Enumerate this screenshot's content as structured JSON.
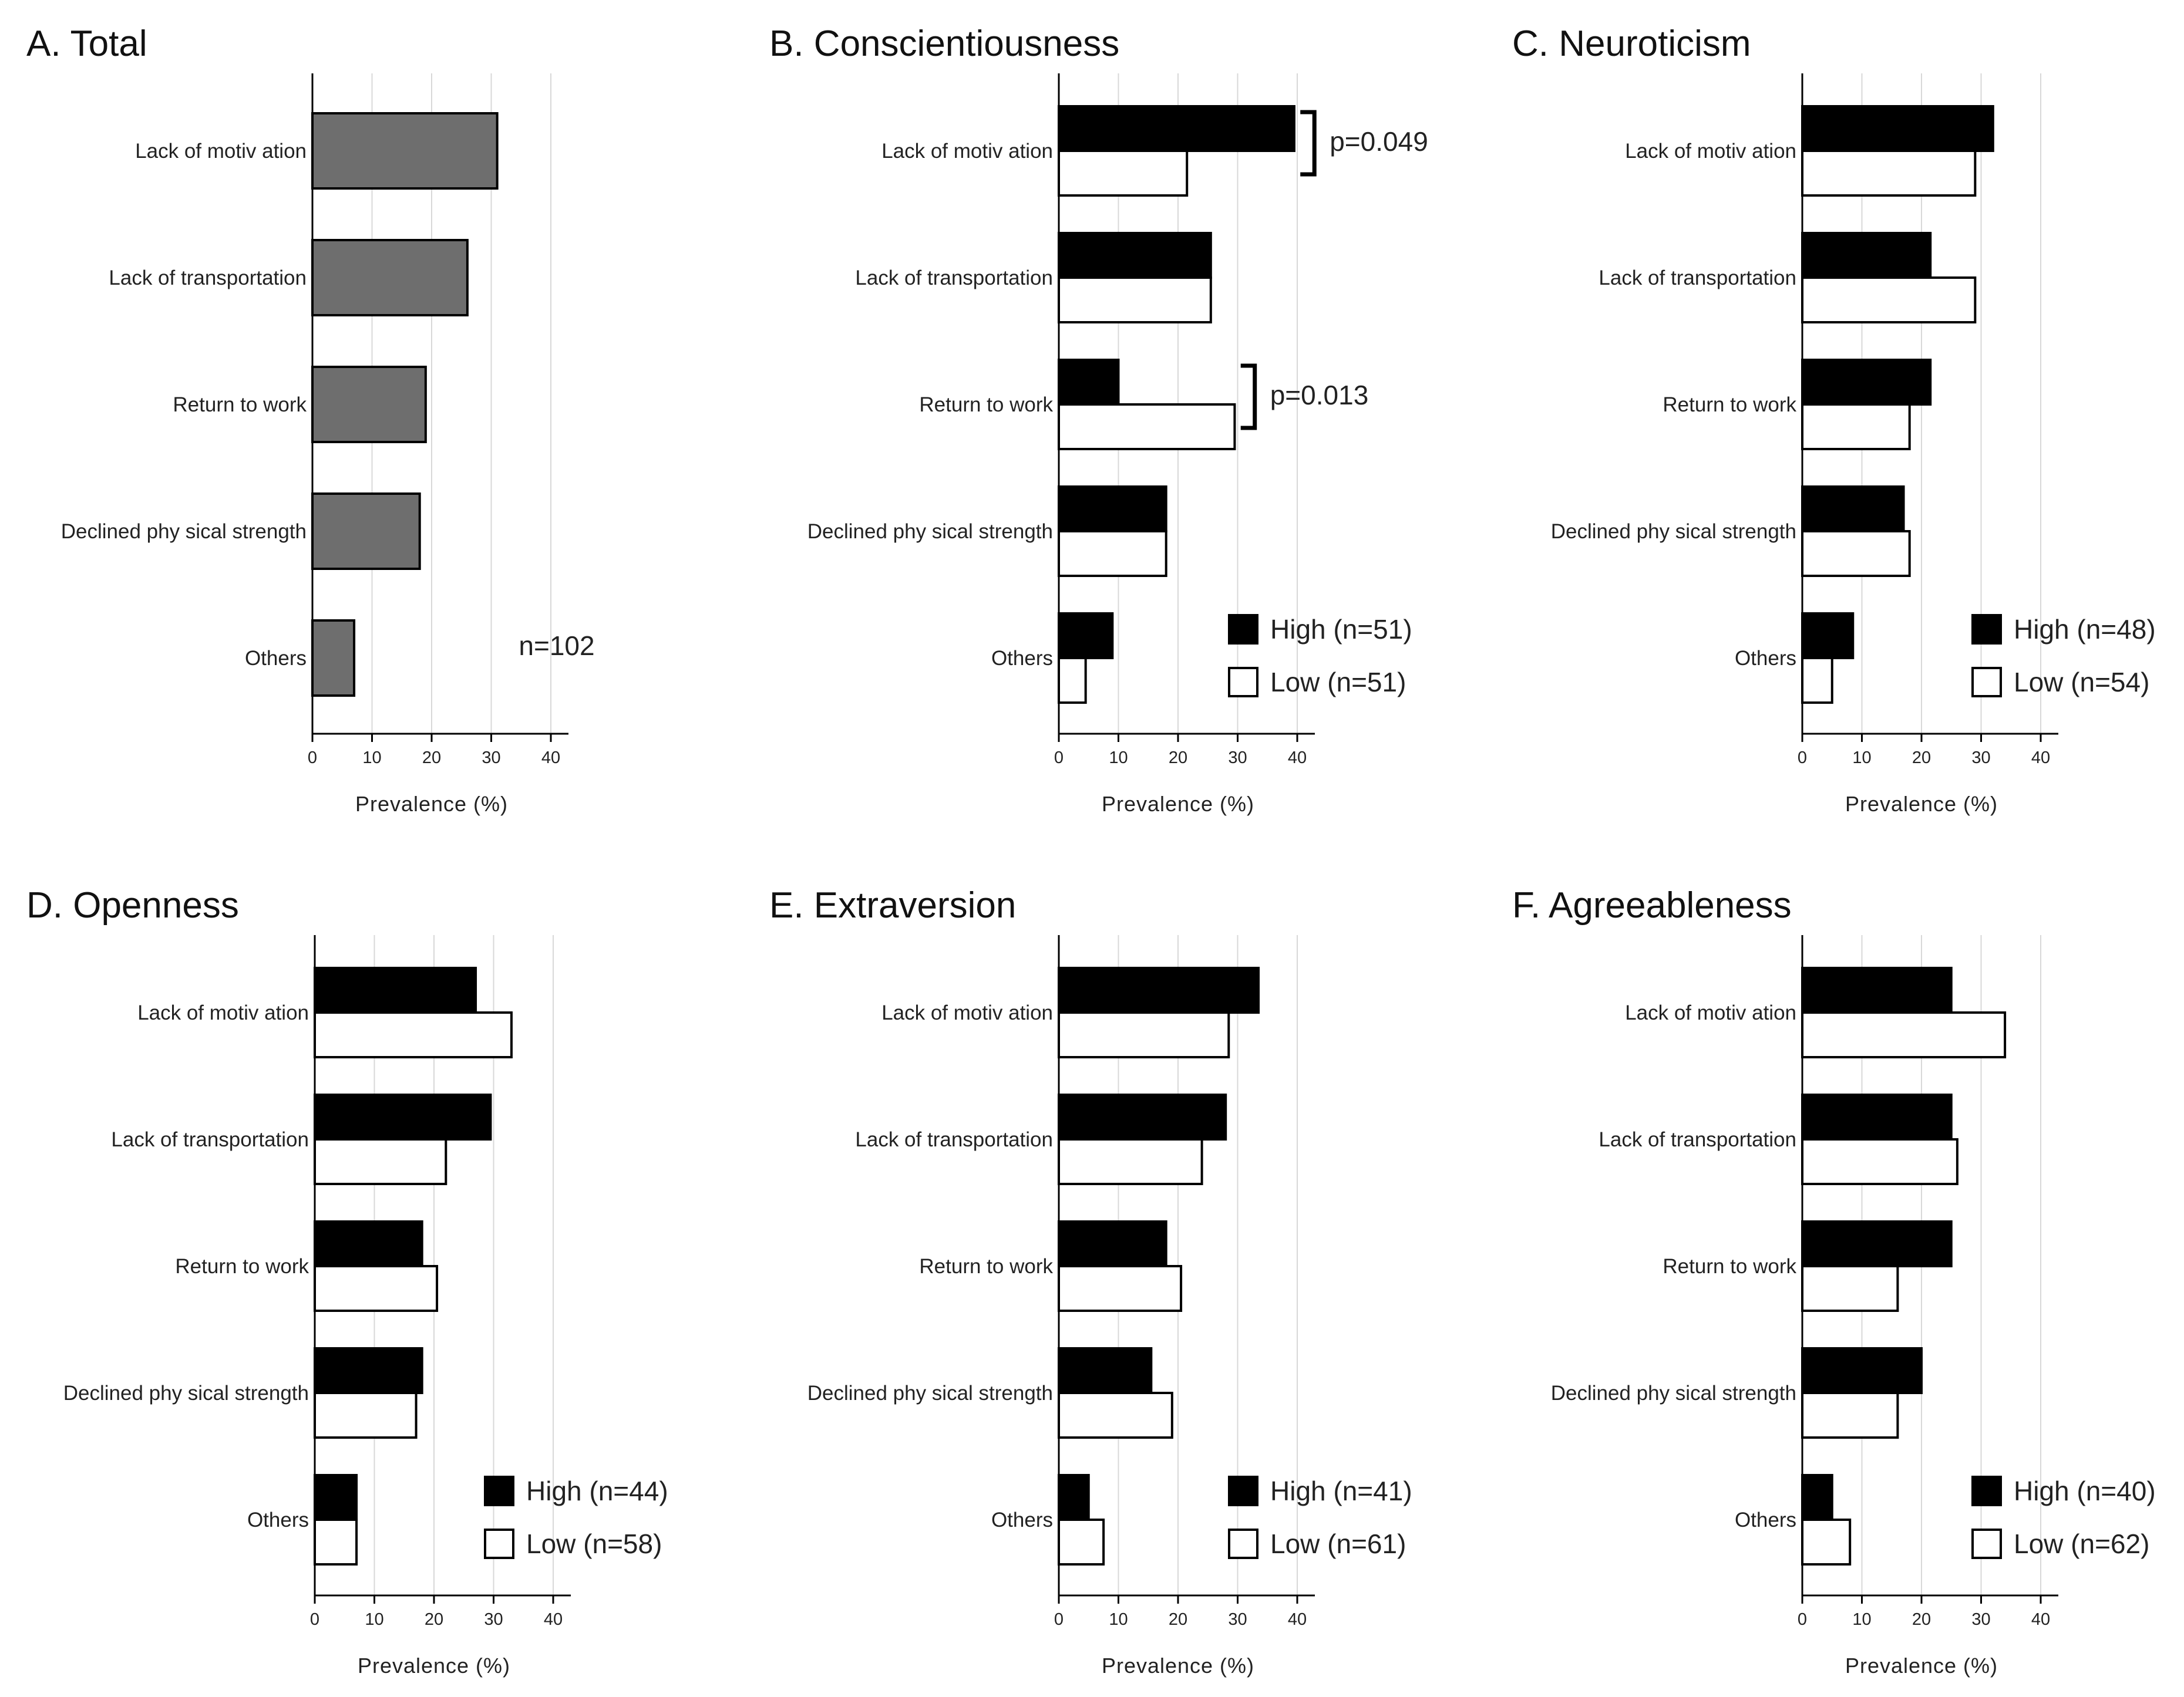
{
  "chart_data": [
    {
      "type": "bar",
      "orientation": "horizontal",
      "title": "A. Total",
      "categories": [
        "Lack of motiv ation",
        "Lack of transportation",
        "Return to work",
        "Declined phy sical strength",
        "Others"
      ],
      "series": [
        {
          "values": [
            31,
            26,
            19,
            18,
            7
          ],
          "color": "#6e6e6e"
        }
      ],
      "xlabel": "Prevalence (%)",
      "xticks": [
        "0",
        "10",
        "20",
        "30",
        "40"
      ],
      "xlim": [
        0,
        44
      ],
      "grid": "vertical",
      "annotations": [
        {
          "text": "n=102",
          "x": 40,
          "category_index": 4
        }
      ]
    },
    {
      "type": "bar",
      "orientation": "horizontal",
      "title": "B. Conscientiousness",
      "categories": [
        "Lack of motiv ation",
        "Lack of transportation",
        "Return to work",
        "Declined phy sical strength",
        "Others"
      ],
      "series": [
        {
          "name": "High (n=51)",
          "values": [
            39.5,
            25.5,
            10,
            18,
            9
          ],
          "color": "#000000"
        },
        {
          "name": "Low (n=51)",
          "values": [
            21.5,
            25.5,
            29.5,
            18,
            4.5
          ],
          "color": "#ffffff"
        }
      ],
      "xlabel": "Prevalence (%)",
      "xticks": [
        "0",
        "10",
        "20",
        "30",
        "40"
      ],
      "xlim": [
        0,
        44
      ],
      "grid": "vertical",
      "legend": "lower-right",
      "annotations": [
        {
          "text": "p=0.049",
          "category_index": 0,
          "x": 41.5
        },
        {
          "text": "p=0.013",
          "category_index": 2,
          "x": 31.5
        }
      ]
    },
    {
      "type": "bar",
      "orientation": "horizontal",
      "title": "C. Neuroticism",
      "categories": [
        "Lack of motiv ation",
        "Lack of transportation",
        "Return to work",
        "Declined phy sical strength",
        "Others"
      ],
      "series": [
        {
          "name": "High (n=48)",
          "values": [
            32,
            21.5,
            21.5,
            17,
            8.5
          ],
          "color": "#000000"
        },
        {
          "name": "Low (n=54)",
          "values": [
            29,
            29,
            18,
            18,
            5
          ],
          "color": "#ffffff"
        }
      ],
      "xlabel": "Prevalence (%)",
      "xticks": [
        "0",
        "10",
        "20",
        "30",
        "40"
      ],
      "xlim": [
        0,
        44
      ],
      "grid": "vertical",
      "legend": "lower-right"
    },
    {
      "type": "bar",
      "orientation": "horizontal",
      "title": "D. Openness",
      "categories": [
        "Lack of motiv ation",
        "Lack of transportation",
        "Return to work",
        "Declined phy sical strength",
        "Others"
      ],
      "series": [
        {
          "name": "High (n=44)",
          "values": [
            27,
            29.5,
            18,
            18,
            7
          ],
          "color": "#000000"
        },
        {
          "name": "Low (n=58)",
          "values": [
            33,
            22,
            20.5,
            17,
            7
          ],
          "color": "#ffffff"
        }
      ],
      "xlabel": "Prevalence (%)",
      "xticks": [
        "0",
        "10",
        "20",
        "30",
        "40"
      ],
      "xlim": [
        0,
        44
      ],
      "grid": "vertical",
      "legend": "lower-right"
    },
    {
      "type": "bar",
      "orientation": "horizontal",
      "title": "E. Extraversion",
      "categories": [
        "Lack of motiv ation",
        "Lack of transportation",
        "Return to work",
        "Declined phy sical strength",
        "Others"
      ],
      "series": [
        {
          "name": "High (n=41)",
          "values": [
            33.5,
            28,
            18,
            15.5,
            5
          ],
          "color": "#000000"
        },
        {
          "name": "Low (n=61)",
          "values": [
            28.5,
            24,
            20.5,
            19,
            7.5
          ],
          "color": "#ffffff"
        }
      ],
      "xlabel": "Prevalence (%)",
      "xticks": [
        "0",
        "10",
        "20",
        "30",
        "40"
      ],
      "xlim": [
        0,
        44
      ],
      "grid": "vertical",
      "legend": "lower-right"
    },
    {
      "type": "bar",
      "orientation": "horizontal",
      "title": "F. Agreeableness",
      "categories": [
        "Lack of motiv ation",
        "Lack of transportation",
        "Return to work",
        "Declined phy sical strength",
        "Others"
      ],
      "series": [
        {
          "name": "High (n=40)",
          "values": [
            25,
            25,
            25,
            20,
            5
          ],
          "color": "#000000"
        },
        {
          "name": "Low (n=62)",
          "values": [
            34,
            26,
            16,
            16,
            8
          ],
          "color": "#ffffff"
        }
      ],
      "xlabel": "Prevalence (%)",
      "xticks": [
        "0",
        "10",
        "20",
        "30",
        "40"
      ],
      "xlim": [
        0,
        44
      ],
      "grid": "vertical",
      "legend": "lower-right"
    }
  ]
}
